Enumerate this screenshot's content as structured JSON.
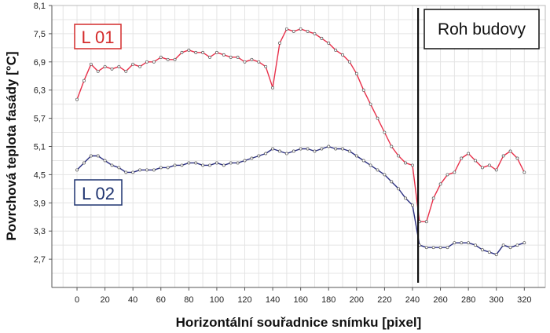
{
  "chart_data": {
    "type": "line",
    "xlabel": "Horizontální souřadnice snímku [pixel]",
    "ylabel": "Povrchová teplota fasády [°C]",
    "xlim": [
      -18,
      335
    ],
    "ylim": [
      2.1,
      8.1
    ],
    "x_ticks": [
      "0",
      "20",
      "40",
      "60",
      "80",
      "100",
      "120",
      "140",
      "160",
      "180",
      "200",
      "220",
      "240",
      "260",
      "280",
      "300",
      "320"
    ],
    "y_ticks": [
      "2,7",
      "3,3",
      "3,9",
      "4,5",
      "5,1",
      "5,7",
      "6,3",
      "6,9",
      "7,5",
      "8,1"
    ],
    "grid": true,
    "marker_x": 244,
    "annotation": "Roh budovy",
    "series": [
      {
        "name": "L 01",
        "color": "#e8304a",
        "label_color": "#d42b2b",
        "x": [
          0,
          5,
          10,
          15,
          20,
          25,
          30,
          35,
          40,
          45,
          50,
          55,
          60,
          65,
          70,
          75,
          80,
          85,
          90,
          95,
          100,
          105,
          110,
          115,
          120,
          125,
          130,
          135,
          140,
          145,
          150,
          155,
          160,
          165,
          170,
          175,
          180,
          185,
          190,
          195,
          200,
          205,
          210,
          215,
          220,
          225,
          230,
          235,
          240,
          245,
          250,
          255,
          260,
          265,
          270,
          275,
          280,
          285,
          290,
          295,
          300,
          305,
          310,
          315,
          320
        ],
        "values": [
          6.1,
          6.5,
          6.85,
          6.7,
          6.8,
          6.75,
          6.8,
          6.7,
          6.85,
          6.8,
          6.9,
          6.9,
          7.0,
          6.95,
          6.95,
          7.1,
          7.15,
          7.1,
          7.1,
          7.0,
          7.1,
          7.05,
          7.0,
          7.0,
          6.9,
          6.95,
          6.9,
          6.8,
          6.35,
          7.3,
          7.6,
          7.55,
          7.6,
          7.55,
          7.5,
          7.4,
          7.3,
          7.15,
          7.05,
          6.9,
          6.65,
          6.3,
          6.0,
          5.7,
          5.4,
          5.1,
          4.9,
          4.75,
          4.7,
          3.5,
          3.5,
          4.0,
          4.3,
          4.5,
          4.55,
          4.85,
          4.95,
          4.8,
          4.65,
          4.7,
          4.6,
          4.9,
          5.0,
          4.85,
          4.55
        ]
      },
      {
        "name": "L 02",
        "color": "#2b2f80",
        "label_color": "#1f3470",
        "x": [
          0,
          5,
          10,
          15,
          20,
          25,
          30,
          35,
          40,
          45,
          50,
          55,
          60,
          65,
          70,
          75,
          80,
          85,
          90,
          95,
          100,
          105,
          110,
          115,
          120,
          125,
          130,
          135,
          140,
          145,
          150,
          155,
          160,
          165,
          170,
          175,
          180,
          185,
          190,
          195,
          200,
          205,
          210,
          215,
          220,
          225,
          230,
          235,
          240,
          245,
          250,
          255,
          260,
          265,
          270,
          275,
          280,
          285,
          290,
          295,
          300,
          305,
          310,
          315,
          320
        ],
        "values": [
          4.6,
          4.75,
          4.9,
          4.9,
          4.8,
          4.7,
          4.65,
          4.55,
          4.55,
          4.6,
          4.6,
          4.6,
          4.65,
          4.65,
          4.7,
          4.7,
          4.75,
          4.75,
          4.7,
          4.7,
          4.75,
          4.7,
          4.75,
          4.75,
          4.8,
          4.85,
          4.9,
          4.95,
          5.05,
          5.0,
          4.95,
          5.0,
          5.05,
          5.05,
          5.0,
          5.05,
          5.1,
          5.05,
          5.05,
          5.0,
          4.9,
          4.8,
          4.7,
          4.6,
          4.5,
          4.35,
          4.2,
          4.0,
          3.85,
          3.0,
          2.95,
          2.95,
          2.95,
          2.95,
          3.05,
          3.05,
          3.05,
          3.0,
          2.9,
          2.85,
          2.8,
          3.0,
          2.95,
          3.0,
          3.05
        ]
      }
    ]
  }
}
